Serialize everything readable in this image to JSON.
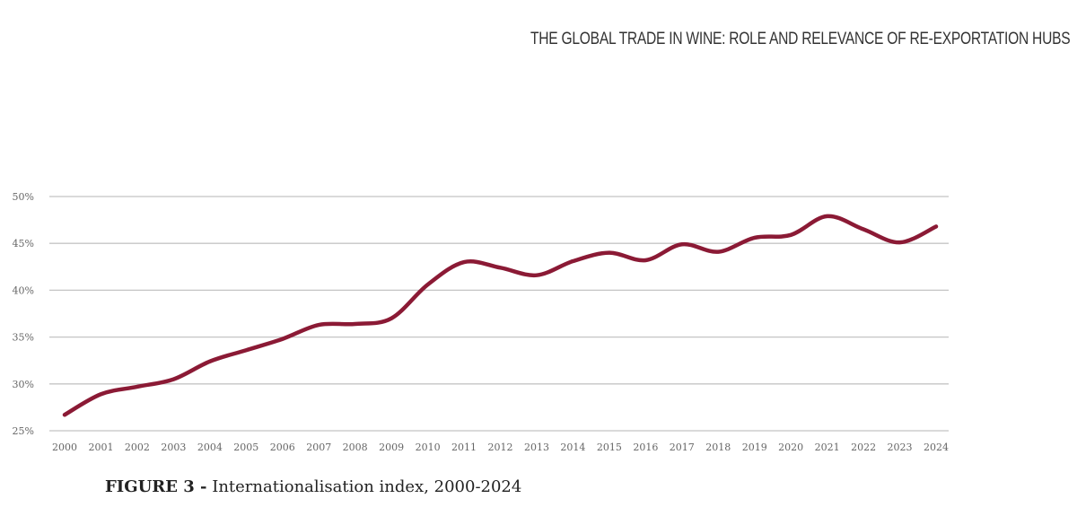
{
  "header": {
    "title": "THE GLOBAL TRADE IN WINE: ROLE AND RELEVANCE OF RE-EXPORTATION HUBS"
  },
  "caption": {
    "label": "FIGURE 3 -",
    "text": "Internationalisation index, 2000-2024"
  },
  "colors": {
    "line": "#8b1a35",
    "grid": "#c4c4c4"
  },
  "chart_data": {
    "type": "line",
    "title": "",
    "xlabel": "",
    "ylabel": "",
    "x": [
      2000,
      2001,
      2002,
      2003,
      2004,
      2005,
      2006,
      2007,
      2008,
      2009,
      2010,
      2011,
      2012,
      2013,
      2014,
      2015,
      2016,
      2017,
      2018,
      2019,
      2020,
      2021,
      2022,
      2023,
      2024
    ],
    "series": [
      {
        "values": [
          26.7,
          28.9,
          29.7,
          30.5,
          32.4,
          33.6,
          34.8,
          36.3,
          36.4,
          37.0,
          40.6,
          43.0,
          42.4,
          41.6,
          43.1,
          44.0,
          43.2,
          44.9,
          44.1,
          45.6,
          45.9,
          47.9,
          46.5,
          45.1,
          46.8
        ]
      }
    ],
    "ylim": [
      25,
      50
    ],
    "yticks": [
      25,
      30,
      35,
      40,
      45,
      50
    ],
    "ytick_labels": [
      "25%",
      "30%",
      "35%",
      "40%",
      "45%",
      "50%"
    ],
    "grid": true,
    "smooth": true
  }
}
